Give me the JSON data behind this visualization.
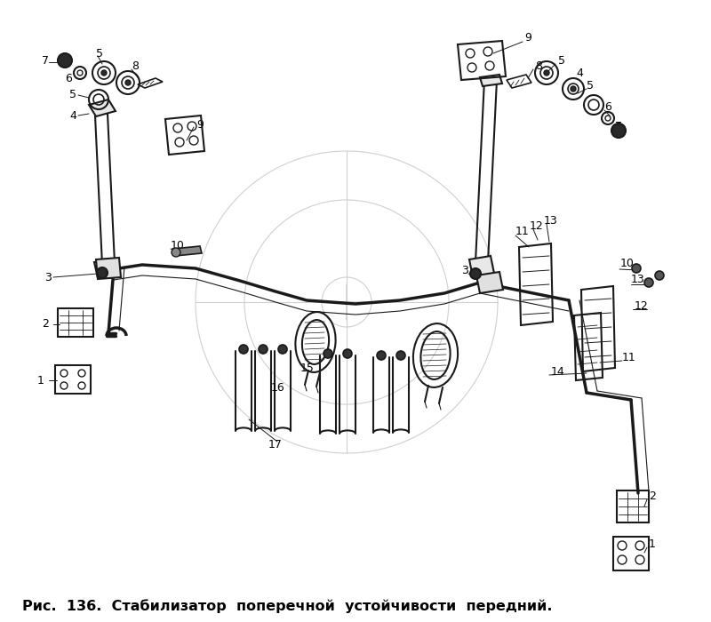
{
  "caption": "Рис.  136.  Стабилизатор  поперечной  устойчивости  передний.",
  "bg": "#ffffff",
  "lc": "#1a1a1a",
  "wm": "#d0d0d0",
  "fig_w": 8.0,
  "fig_h": 7.0
}
